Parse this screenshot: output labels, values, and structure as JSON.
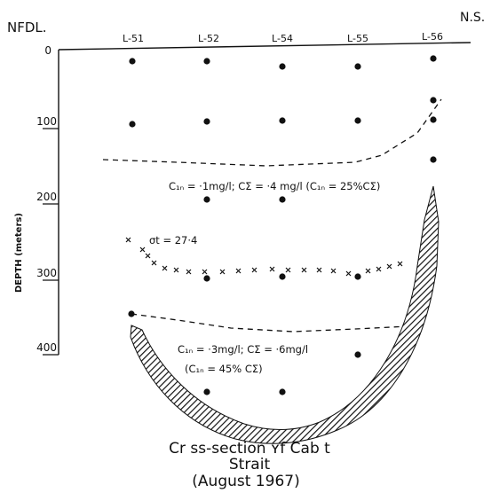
{
  "figure": {
    "left_label": "NFDL.",
    "right_label": "N.S.",
    "y_axis_label": "DEPTH (meters)",
    "depth_ticks": [
      "0",
      "100",
      "200",
      "300",
      "400"
    ],
    "stations": [
      "L-51",
      "L-52",
      "L-54",
      "L-55",
      "L-56"
    ],
    "upper_annotation": "C₁ₙ = ·1mg/l;  CΣ = ·4 mg/l (C₁ₙ = 25%CΣ)",
    "sigma_label": "σt = 27·4",
    "lower_annotation_1": "C₁ₙ = ·3mg/l;  CΣ = ·6mg/l",
    "lower_annotation_2": "(C₁ₙ = 45% CΣ)",
    "caption_line1": "Cr ss-section  ʏf  Cab t",
    "caption_line2": "Strait",
    "caption_line3": "(August    1967)",
    "colors": {
      "ink": "#111111",
      "background": "#ffffff"
    }
  }
}
